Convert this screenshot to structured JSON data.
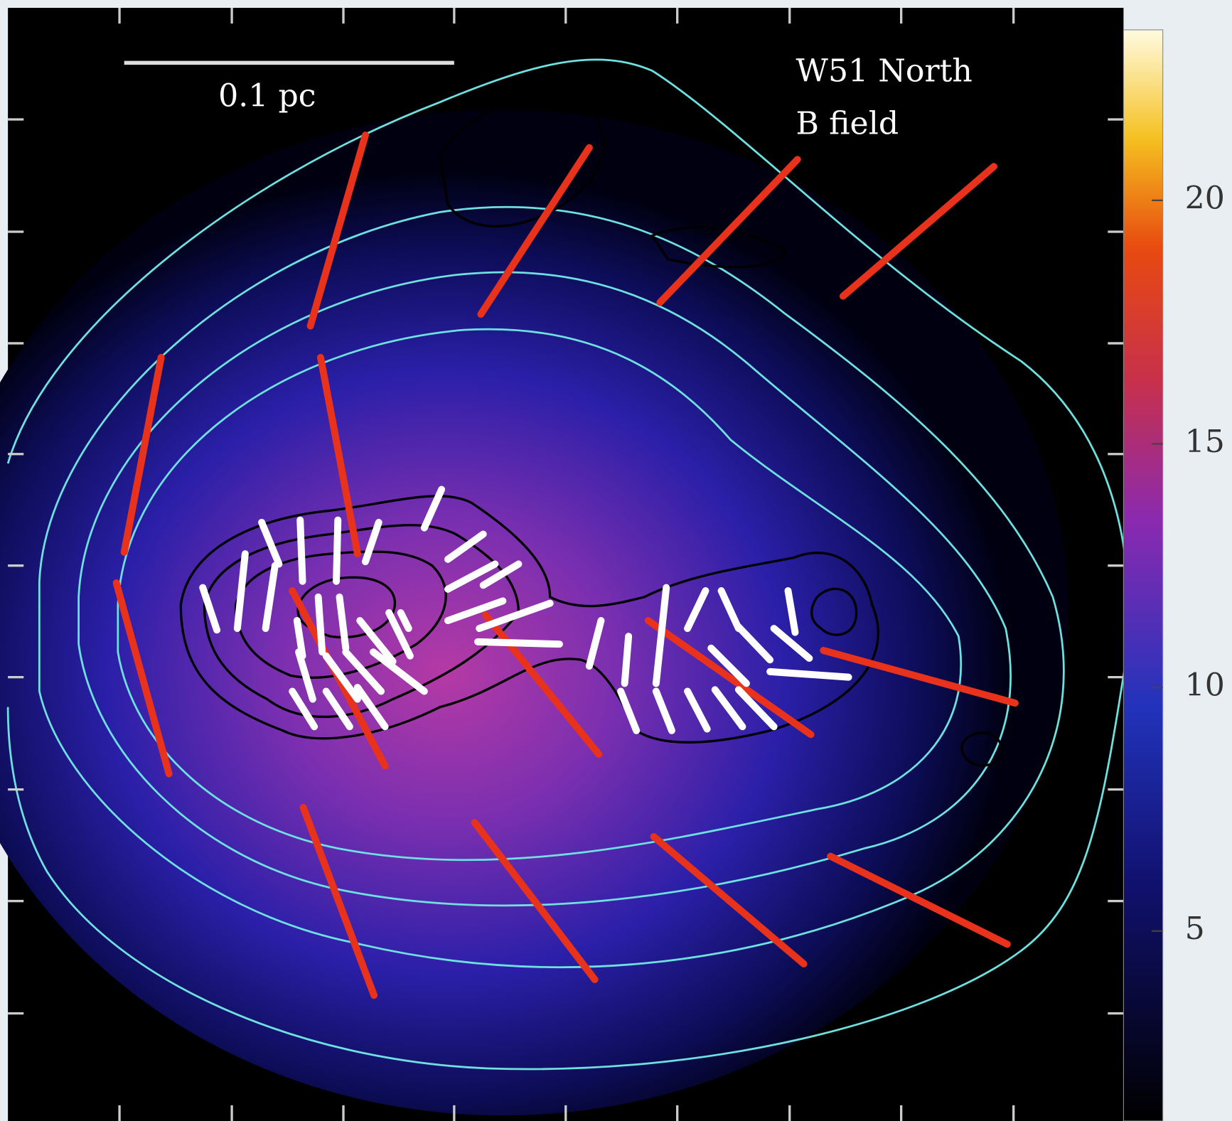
{
  "figure": {
    "label": "W51 North",
    "sublabel": "B field",
    "scale_bar": "0.1 pc",
    "colorbar": {
      "lim": [
        1.1,
        23.5
      ],
      "ticks": [
        5,
        10,
        15,
        20
      ]
    }
  }
}
